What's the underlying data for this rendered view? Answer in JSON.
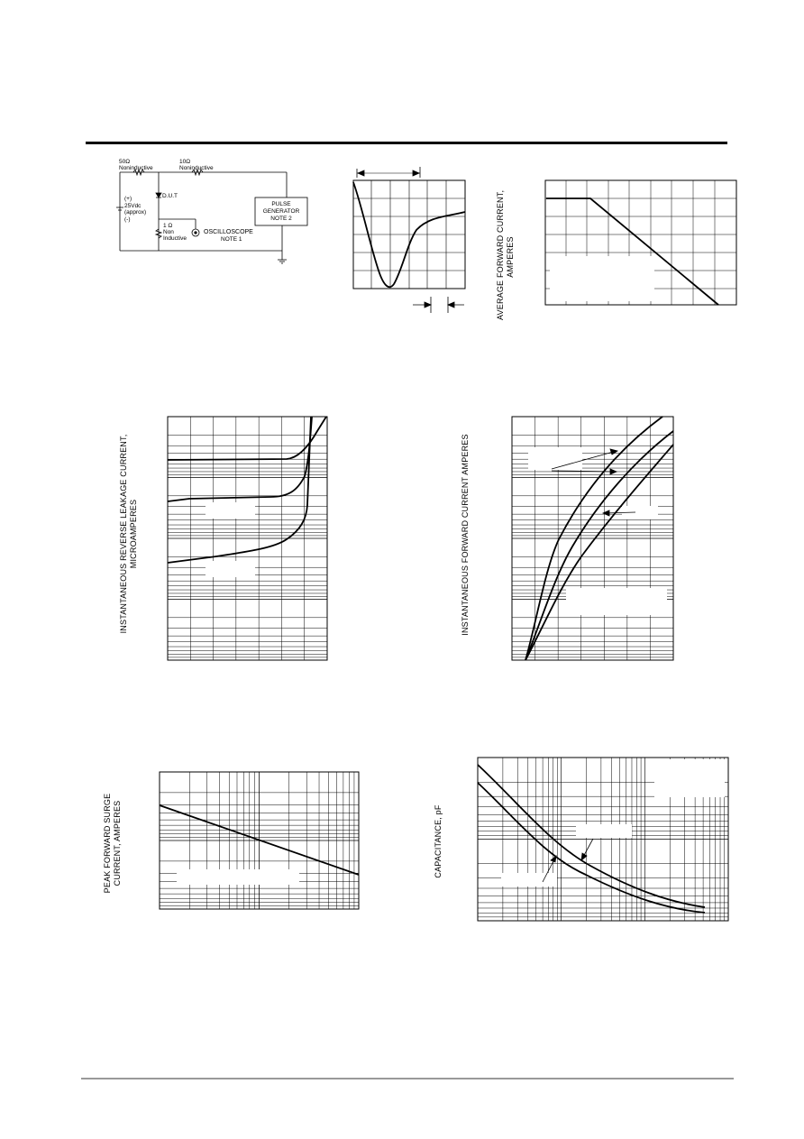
{
  "circuit": {
    "r1_value": "50Ω",
    "r1_desc": "Noninductive",
    "r2_value": "10Ω",
    "r2_desc": "Noninductive",
    "supply_pol_pos": "(+)",
    "supply_value": "25Vdc",
    "supply_approx": "(approx)",
    "supply_pol_neg": "(-)",
    "dut": "D.U.T",
    "r3_value": "1 Ω",
    "r3_desc1": "Non",
    "r3_desc2": "Inductive",
    "scope_label": "OSCILLOSCOPE",
    "scope_note": "NOTE 1",
    "pulse_l1": "PULSE",
    "pulse_l2": "GENERATOR",
    "pulse_l3": "NOTE 2"
  },
  "labels": {
    "avg_forward_1": "AVERAGE FORWARD CURRENT,",
    "avg_forward_2": "AMPERES",
    "rev_leakage_1": "INSTANTANEOUS REVERSE LEAKAGE CURRENT,",
    "rev_leakage_2": "MICROAMPERES",
    "fwd_current": "INSTANTANEOUS FORWARD CURRENT AMPERES",
    "surge_1": "PEAK FORWARD SURGE",
    "surge_2": "CURRENT, AMPERES",
    "capacitance": "CAPACITANCE, pF"
  },
  "colors": {
    "ink": "#000000",
    "grid": "#000000",
    "footer_rule": "#999999"
  }
}
